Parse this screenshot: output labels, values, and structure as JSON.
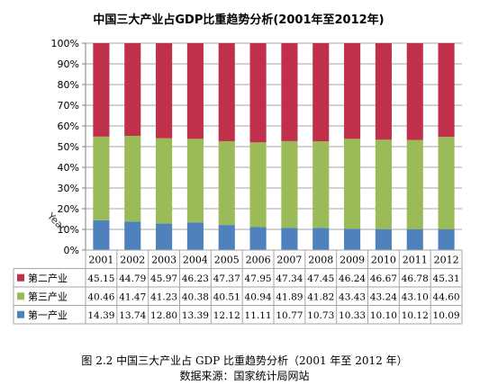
{
  "chart_data": {
    "type": "bar",
    "stacked": "percent",
    "title": "中国三大产业占GDP比重趋势分析(2001年至2012年)",
    "xlabel": "",
    "ylabel": "Year",
    "ylim": [
      0,
      100
    ],
    "y_ticks": [
      "0%",
      "10%",
      "20%",
      "30%",
      "40%",
      "50%",
      "60%",
      "70%",
      "80%",
      "90%",
      "100%"
    ],
    "grid": true,
    "legend_position": "table-left",
    "categories": [
      "2001",
      "2002",
      "2003",
      "2004",
      "2005",
      "2006",
      "2007",
      "2008",
      "2009",
      "2010",
      "2011",
      "2012"
    ],
    "series": [
      {
        "name": "第一产业",
        "color": "#4F81BD",
        "values": [
          "14.39",
          "13.74",
          "12.80",
          "13.39",
          "12.12",
          "11.11",
          "10.77",
          "10.73",
          "10.33",
          "10.10",
          "10.12",
          "10.09"
        ]
      },
      {
        "name": "第三产业",
        "color": "#9BBB59",
        "values": [
          "40.46",
          "41.47",
          "41.23",
          "40.38",
          "40.51",
          "40.94",
          "41.89",
          "41.82",
          "43.43",
          "43.24",
          "43.10",
          "44.60"
        ]
      },
      {
        "name": "第二产业",
        "color": "#C0304A",
        "values": [
          "45.15",
          "44.79",
          "45.97",
          "46.23",
          "47.37",
          "47.95",
          "47.34",
          "47.45",
          "46.24",
          "46.67",
          "46.78",
          "45.31"
        ]
      }
    ],
    "table_row_order": [
      "第二产业",
      "第三产业",
      "第一产业"
    ]
  },
  "caption": {
    "line1": "图 2.2    中国三大产业占 GDP 比重趋势分析（2001 年至 2012 年）",
    "line2": "数据来源：国家统计局网站"
  }
}
